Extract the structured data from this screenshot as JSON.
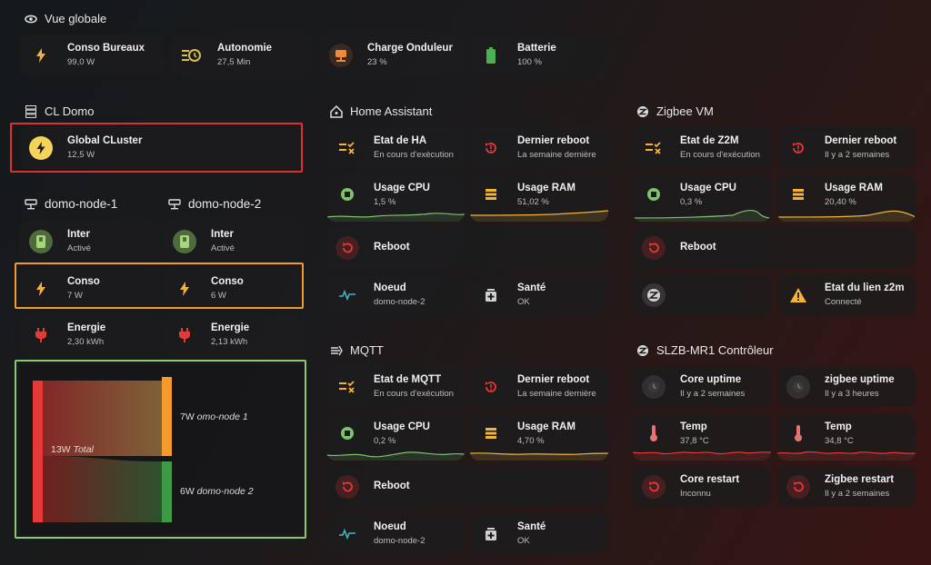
{
  "overview": {
    "title": "Vue globale",
    "tiles": [
      {
        "name": "Conso Bureaux",
        "state": "99,0 W",
        "icon": "bolt-icon"
      },
      {
        "name": "Autonomie",
        "state": "27,5 Min",
        "icon": "timer-icon"
      },
      {
        "name": "Charge Onduleur",
        "state": "23 %",
        "icon": "ups-icon"
      },
      {
        "name": "Batterie",
        "state": "100 %",
        "icon": "battery-icon"
      }
    ]
  },
  "cl_domo": {
    "title": "CL Domo",
    "global": {
      "name": "Global CLuster",
      "state": "12,5 W"
    },
    "node1": {
      "title": "domo-node-1",
      "inter": {
        "name": "Inter",
        "state": "Activé"
      },
      "conso": {
        "name": "Conso",
        "state": "7 W"
      },
      "energie": {
        "name": "Energie",
        "state": "2,30 kWh"
      }
    },
    "node2": {
      "title": "domo-node-2",
      "inter": {
        "name": "Inter",
        "state": "Activé"
      },
      "conso": {
        "name": "Conso",
        "state": "6 W"
      },
      "energie": {
        "name": "Energie",
        "state": "2,13 kWh"
      }
    },
    "sankey": {
      "total_value": "13W",
      "total_label": "Total",
      "out1_value": "7W",
      "out1_label": "omo-node 1",
      "out2_value": "6W",
      "out2_label": "domo-node 2",
      "flows": [
        7,
        6
      ]
    }
  },
  "ha": {
    "title": "Home Assistant",
    "etat": {
      "name": "Etat de HA",
      "state": "En cours d'exécution"
    },
    "reboot_last": {
      "name": "Dernier reboot",
      "state": "La semaine dernière"
    },
    "cpu": {
      "name": "Usage CPU",
      "state": "1,5 %"
    },
    "ram": {
      "name": "Usage RAM",
      "state": "51,02 %"
    },
    "reboot": {
      "name": "Reboot"
    },
    "noeud": {
      "name": "Noeud",
      "state": "domo-node-2"
    },
    "sante": {
      "name": "Santé",
      "state": "OK"
    }
  },
  "zigbee": {
    "title": "Zigbee VM",
    "etat": {
      "name": "Etat de Z2M",
      "state": "En cours d'exécution"
    },
    "reboot_last": {
      "name": "Dernier reboot",
      "state": "Il y a 2 semaines"
    },
    "cpu": {
      "name": "Usage CPU",
      "state": "0,3 %"
    },
    "ram": {
      "name": "Usage RAM",
      "state": "20,40 %"
    },
    "reboot": {
      "name": "Reboot"
    },
    "lien": {
      "name": "Etat du lien z2m",
      "state": "Connecté"
    }
  },
  "mqtt": {
    "title": "MQTT",
    "etat": {
      "name": "Etat de MQTT",
      "state": "En cours d'exécution"
    },
    "reboot_last": {
      "name": "Dernier reboot",
      "state": "La semaine dernière"
    },
    "cpu": {
      "name": "Usage CPU",
      "state": "0,2 %"
    },
    "ram": {
      "name": "Usage RAM",
      "state": "4,70 %"
    },
    "reboot": {
      "name": "Reboot"
    },
    "noeud": {
      "name": "Noeud",
      "state": "domo-node-2"
    },
    "sante": {
      "name": "Santé",
      "state": "OK"
    }
  },
  "slzb": {
    "title": "SLZB-MR1 Contrôleur",
    "core_uptime": {
      "name": "Core uptime",
      "state": "Il y a 2 semaines"
    },
    "zigbee_uptime": {
      "name": "zigbee uptime",
      "state": "Il y a 3 heures"
    },
    "temp1": {
      "name": "Temp",
      "state": "37,8 °C"
    },
    "temp2": {
      "name": "Temp",
      "state": "34,8 °C"
    },
    "core_restart": {
      "name": "Core restart",
      "state": "Inconnu"
    },
    "zigbee_restart": {
      "name": "Zigbee restart",
      "state": "Il y a 2 semaines"
    }
  },
  "colors": {
    "accent_red": "#e53935",
    "accent_orange": "#f9a13c",
    "accent_green": "#7cc36a",
    "highlight_red": "#e0302a",
    "highlight_orange": "#f39a2b",
    "highlight_green": "#8bc870"
  }
}
